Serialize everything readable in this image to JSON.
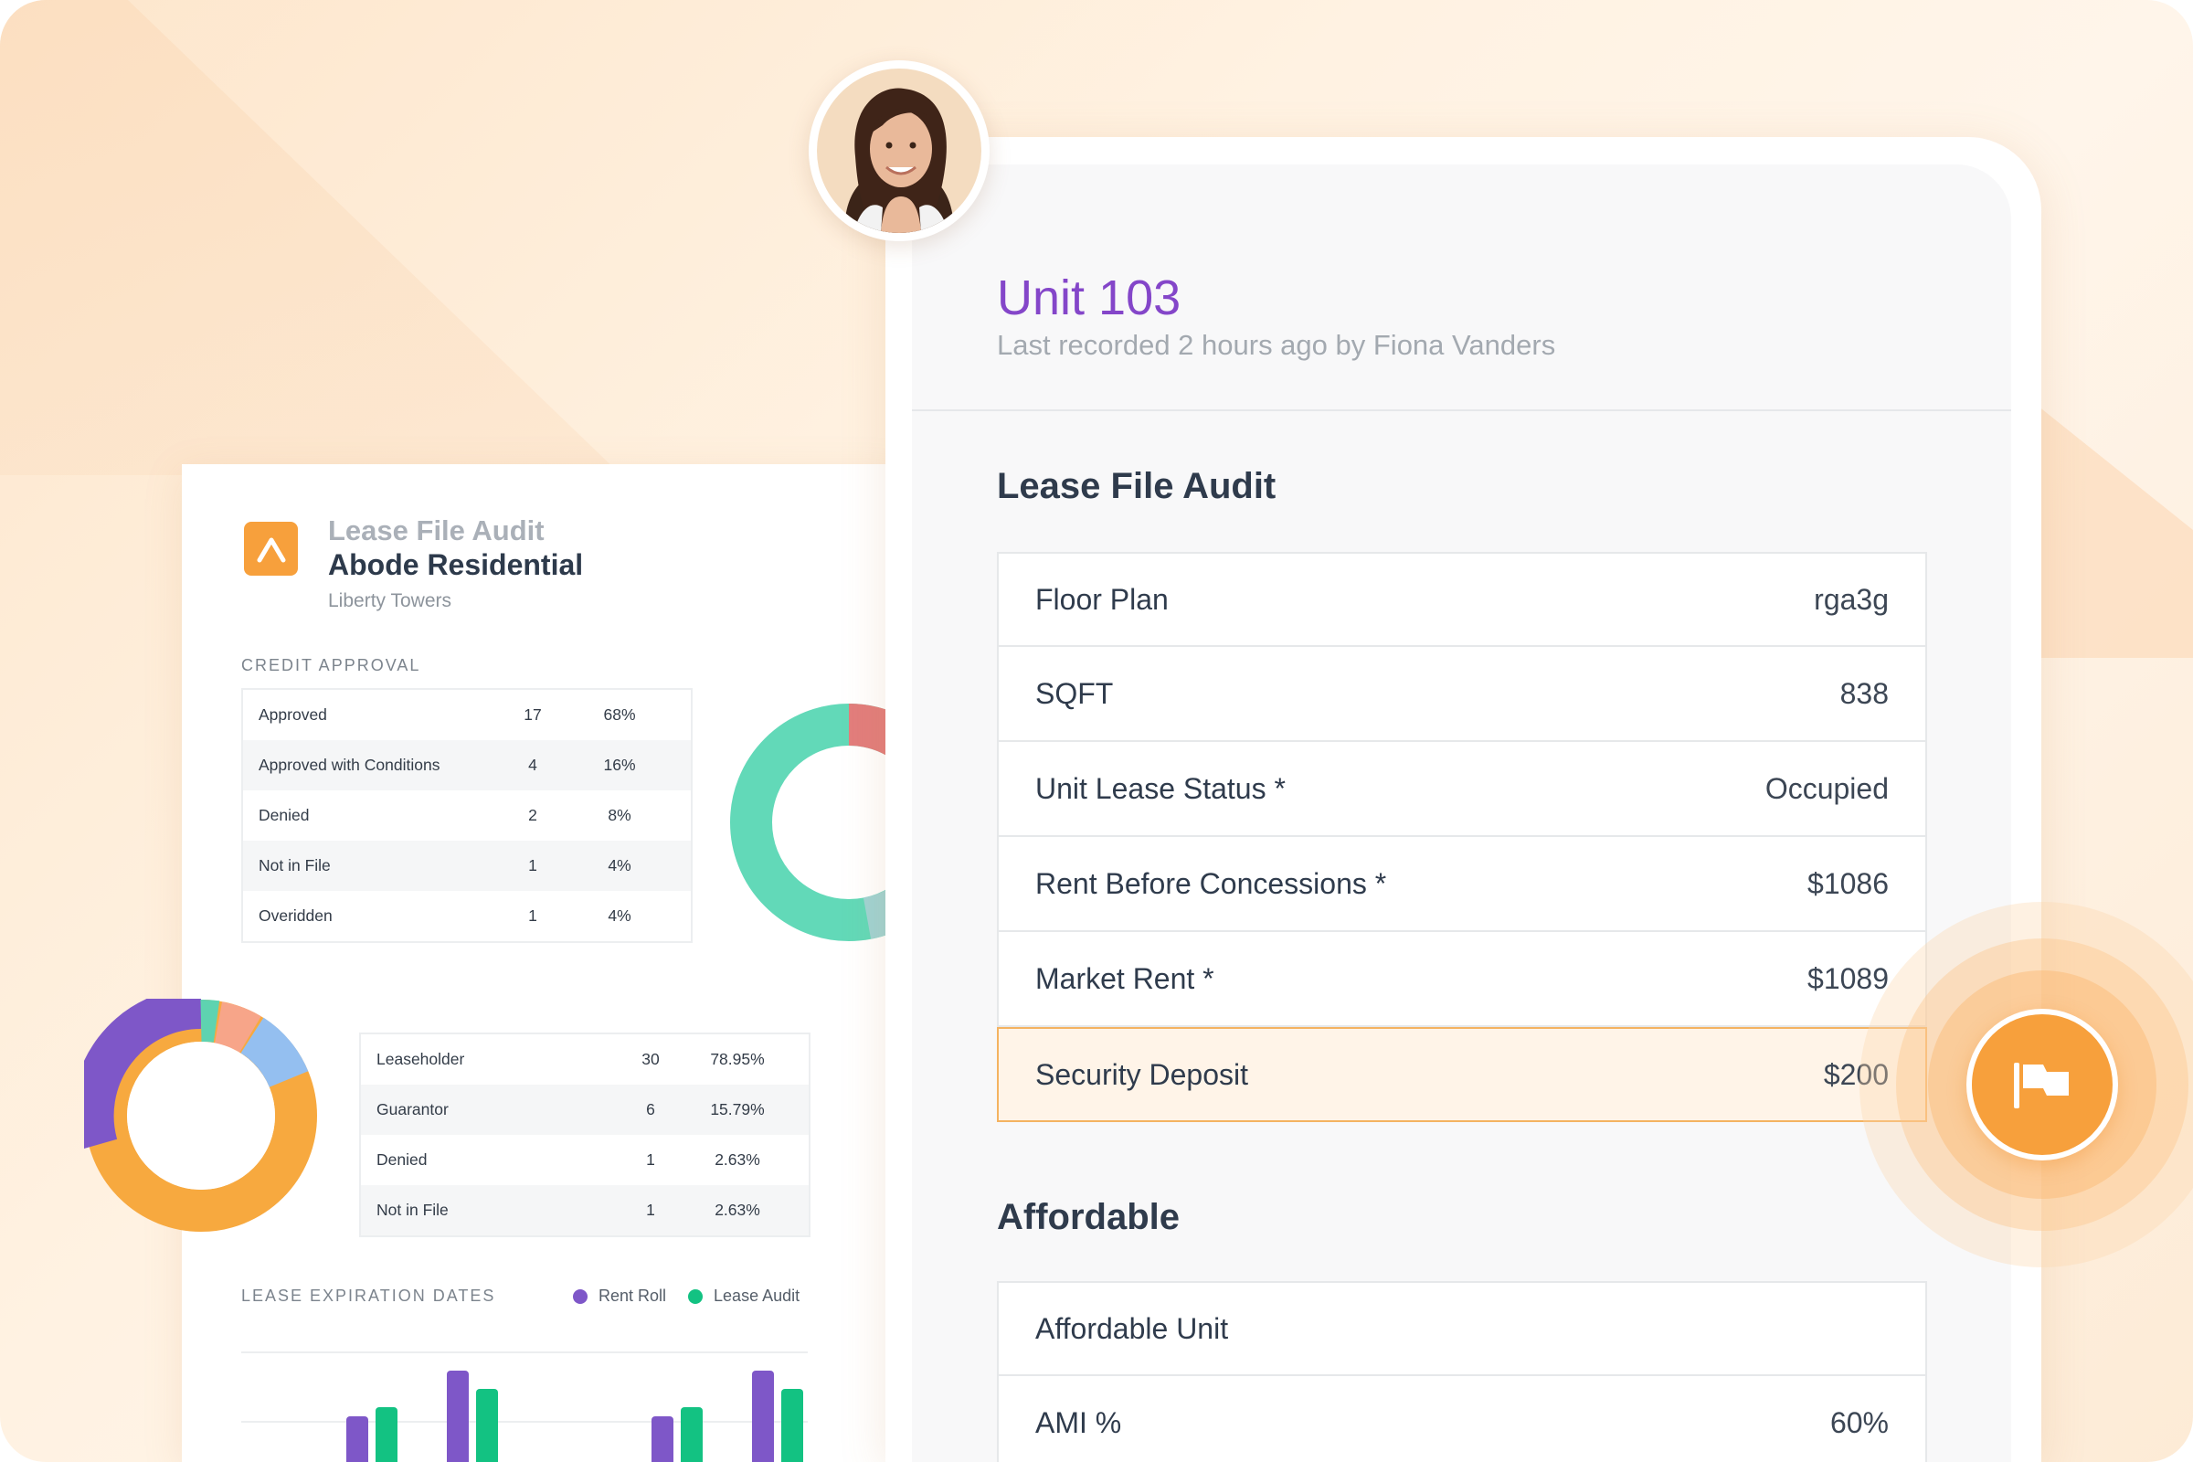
{
  "report": {
    "supertitle": "Lease File Audit",
    "title": "Abode Residential",
    "subtitle": "Liberty Towers",
    "credit_section": "CREDIT APPROVAL",
    "credit_rows": [
      {
        "label": "Approved",
        "count": "17",
        "pct": "68%"
      },
      {
        "label": "Approved with Conditions",
        "count": "4",
        "pct": "16%"
      },
      {
        "label": "Denied",
        "count": "2",
        "pct": "8%"
      },
      {
        "label": "Not in File",
        "count": "1",
        "pct": "4%"
      },
      {
        "label": "Overidden",
        "count": "1",
        "pct": "4%"
      }
    ],
    "holder_rows": [
      {
        "label": "Leaseholder",
        "count": "30",
        "pct": "78.95%"
      },
      {
        "label": "Guarantor",
        "count": "6",
        "pct": "15.79%"
      },
      {
        "label": "Denied",
        "count": "1",
        "pct": "2.63%"
      },
      {
        "label": "Not in File",
        "count": "1",
        "pct": "2.63%"
      }
    ],
    "expiration_section": "LEASE EXPIRATION DATES",
    "legend": [
      {
        "name": "Rent Roll",
        "color": "#7e57c8"
      },
      {
        "name": "Lease Audit",
        "color": "#13c282"
      }
    ]
  },
  "unit": {
    "title": "Unit 103",
    "subtitle": "Last recorded 2 hours ago by Fiona Vanders",
    "lease_section": "Lease File Audit",
    "lease_rows": [
      {
        "label": "Floor Plan",
        "value": "rga3g"
      },
      {
        "label": "SQFT",
        "value": "838"
      },
      {
        "label": "Unit Lease Status *",
        "value": "Occupied"
      },
      {
        "label": "Rent Before Concessions *",
        "value": "$1086"
      },
      {
        "label": "Market Rent *",
        "value": "$1089"
      },
      {
        "label": "Security Deposit",
        "value": "$200",
        "flagged": true
      }
    ],
    "affordable_section": "Affordable",
    "affordable_rows": [
      {
        "label": "Affordable Unit",
        "value": ""
      },
      {
        "label": "AMI %",
        "value": "60%"
      }
    ]
  },
  "colors": {
    "accent_purple": "#8446c9",
    "accent_orange": "#f7a03c",
    "donut1": [
      "#e27d7c",
      "#9fd3d3",
      "#62d9b8"
    ],
    "donut2": [
      "#7e57c8",
      "#f7a93f",
      "#94bff0",
      "#f7a589",
      "#5ed3b0"
    ]
  },
  "icons": {
    "logo": "abode-logo-icon",
    "flag": "flag-icon"
  }
}
